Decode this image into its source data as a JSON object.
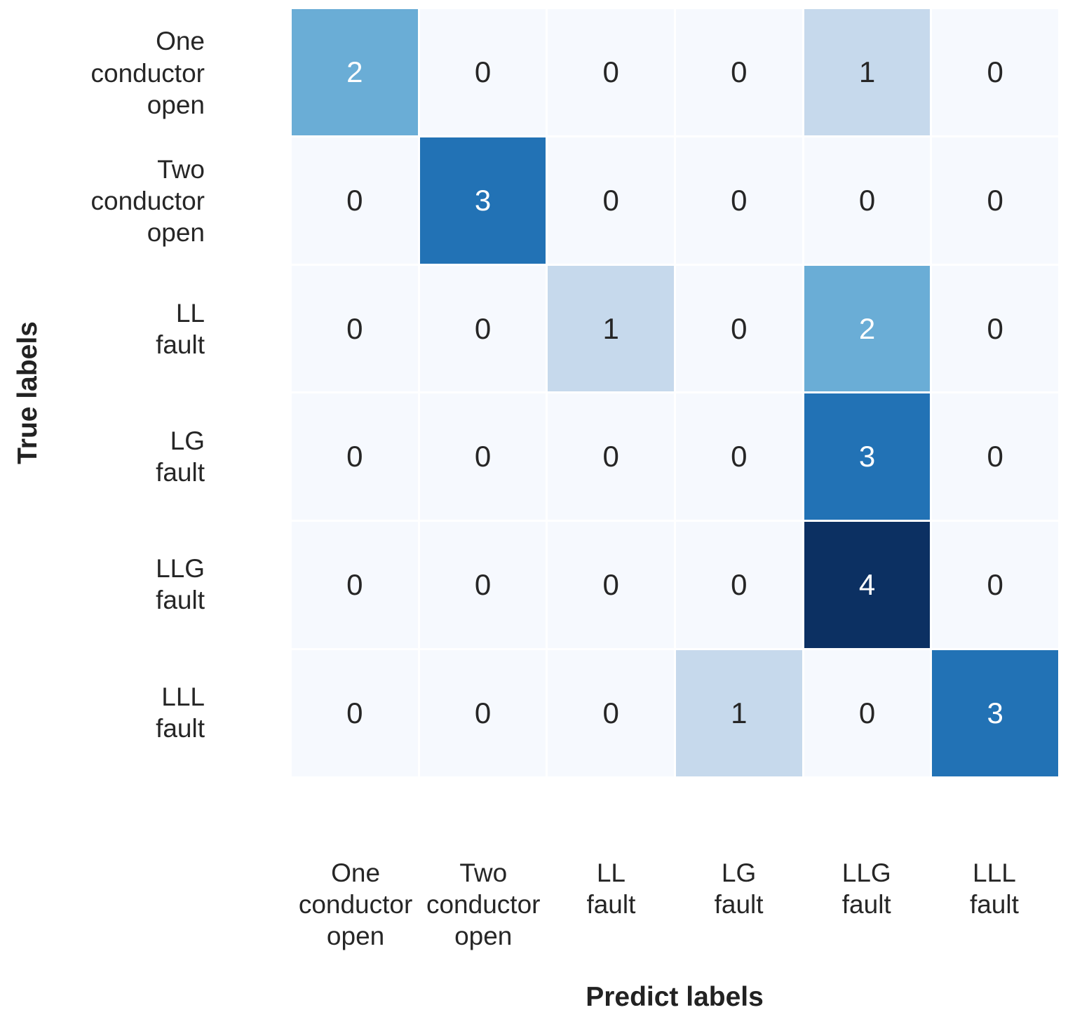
{
  "chart_data": {
    "type": "heatmap",
    "title": "",
    "xlabel": "Predict labels",
    "ylabel": "True labels",
    "categories": [
      "One conductor open",
      "Two conductor open",
      "LL fault",
      "LG fault",
      "LLG fault",
      "LLL fault"
    ],
    "row_labels_display": [
      "One\nconductor\nopen",
      "Two\nconductor\nopen",
      "LL\nfault",
      "LG\nfault",
      "LLG\nfault",
      "LLL\nfault"
    ],
    "col_labels_display": [
      "One\nconductor\nopen",
      "Two\nconductor\nopen",
      "LL\nfault",
      "LG\nfault",
      "LLG\nfault",
      "LLL\nfault"
    ],
    "matrix": [
      [
        2,
        0,
        0,
        0,
        1,
        0
      ],
      [
        0,
        3,
        0,
        0,
        0,
        0
      ],
      [
        0,
        0,
        1,
        0,
        2,
        0
      ],
      [
        0,
        0,
        0,
        0,
        3,
        0
      ],
      [
        0,
        0,
        0,
        0,
        4,
        0
      ],
      [
        0,
        0,
        0,
        1,
        0,
        3
      ]
    ],
    "value_range": [
      0,
      4
    ],
    "colormap": "Blues",
    "grid": false,
    "legend_position": "none",
    "value_colors": {
      "0": "#f6f9fe",
      "1": "#c6d9ec",
      "2": "#6aadd6",
      "3": "#2272b5",
      "4": "#0c3062"
    },
    "annotation": {
      "dark_color": "#262626",
      "light_color": "#ffffff",
      "light_threshold": 2
    }
  }
}
